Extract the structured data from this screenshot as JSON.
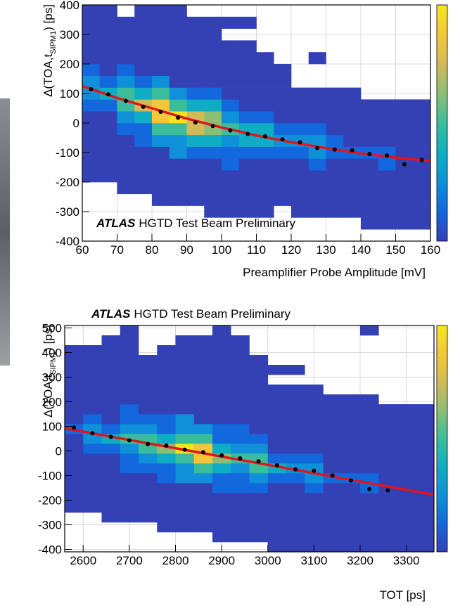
{
  "chart_data": [
    {
      "type": "heatmap",
      "xlabel": "Preamplifier Probe Amplitude [mV]",
      "ylabel": {
        "text": "Δ(TOA,t",
        "sub": "SIPM1",
        "tail": ") [ps]"
      },
      "annotation": {
        "bold": "ATLAS",
        "text": "HGTD Test Beam Preliminary"
      },
      "xlim": [
        60,
        160
      ],
      "ylim": [
        -400,
        400
      ],
      "xticks": [
        60,
        70,
        80,
        90,
        100,
        110,
        120,
        130,
        140,
        150,
        160
      ],
      "yticks": [
        -400,
        -300,
        -200,
        -100,
        0,
        100,
        200,
        300,
        400
      ],
      "grid": true,
      "colormap": [
        "#3441b5",
        "#1268dc",
        "#1090d8",
        "#0fadc4",
        "#3bbd9c",
        "#8dbf73",
        "#d3ba57",
        "#f5c63a",
        "#f6e51e"
      ],
      "xbins": [
        60,
        65,
        70,
        75,
        80,
        85,
        90,
        95,
        100,
        105,
        110,
        115,
        120,
        125,
        130,
        135,
        140,
        145,
        150,
        155,
        160
      ],
      "ybins": [
        -400,
        -360,
        -320,
        -280,
        -240,
        -200,
        -160,
        -120,
        -80,
        -40,
        0,
        40,
        80,
        120,
        160,
        200,
        240,
        280,
        320,
        360,
        400
      ],
      "counts": [
        [
          0,
          0,
          0,
          0,
          0,
          0,
          0,
          0,
          0,
          0,
          0,
          0,
          0,
          0,
          0,
          0,
          0,
          0,
          0,
          0
        ],
        [
          0,
          0,
          0,
          0,
          0,
          0,
          0,
          0,
          0,
          0,
          0,
          0,
          0,
          0,
          0,
          0,
          1,
          1,
          1,
          1
        ],
        [
          0,
          0,
          0,
          0,
          0,
          0,
          0,
          1,
          1,
          1,
          1,
          0,
          1,
          1,
          1,
          1,
          1,
          1,
          1,
          1
        ],
        [
          0,
          0,
          0,
          0,
          1,
          1,
          1,
          1,
          1,
          1,
          1,
          1,
          1,
          1,
          1,
          1,
          1,
          1,
          1,
          1
        ],
        [
          0,
          0,
          1,
          1,
          1,
          1,
          1,
          1,
          1,
          1,
          1,
          1,
          1,
          1,
          1,
          1,
          1,
          1,
          1,
          1
        ],
        [
          1,
          1,
          1,
          1,
          1,
          1,
          1,
          1,
          1,
          1,
          1,
          1,
          1,
          1,
          1,
          1,
          1,
          1,
          1,
          1
        ],
        [
          1,
          1,
          1,
          1,
          1,
          1,
          1,
          1,
          2,
          1,
          1,
          1,
          1,
          2,
          1,
          1,
          1,
          2,
          1,
          1
        ],
        [
          1,
          1,
          1,
          1,
          1,
          3,
          2,
          2,
          2,
          2,
          2,
          2,
          2,
          3,
          2,
          2,
          2,
          2,
          1,
          1
        ],
        [
          1,
          1,
          1,
          2,
          3,
          3,
          4,
          4,
          3,
          4,
          4,
          3,
          3,
          3,
          2,
          1,
          1,
          1,
          1,
          1
        ],
        [
          1,
          1,
          2,
          2,
          5,
          5,
          7,
          6,
          5,
          4,
          4,
          2,
          2,
          2,
          1,
          1,
          1,
          1,
          1,
          1
        ],
        [
          1,
          1,
          3,
          4,
          8,
          9,
          7,
          6,
          3,
          2,
          2,
          1,
          1,
          1,
          1,
          1,
          1,
          1,
          1,
          1
        ],
        [
          2,
          2,
          5,
          7,
          8,
          5,
          4,
          4,
          2,
          1,
          1,
          1,
          1,
          1,
          1,
          1,
          1,
          1,
          1,
          1
        ],
        [
          3,
          4,
          5,
          4,
          5,
          3,
          2,
          2,
          1,
          1,
          1,
          1,
          1,
          1,
          1,
          1,
          0,
          0,
          0,
          0
        ],
        [
          3,
          2,
          3,
          2,
          3,
          1,
          1,
          1,
          1,
          1,
          1,
          1,
          0,
          0,
          0,
          0,
          0,
          0,
          0,
          0
        ],
        [
          2,
          1,
          2,
          1,
          1,
          1,
          1,
          1,
          1,
          1,
          1,
          1,
          0,
          0,
          0,
          0,
          0,
          0,
          0,
          0
        ],
        [
          1,
          1,
          1,
          1,
          1,
          1,
          1,
          1,
          1,
          1,
          1,
          0,
          0,
          1,
          0,
          0,
          0,
          0,
          0,
          0
        ],
        [
          1,
          1,
          1,
          1,
          1,
          1,
          1,
          1,
          1,
          1,
          0,
          0,
          0,
          0,
          0,
          0,
          0,
          0,
          0,
          0
        ],
        [
          1,
          1,
          1,
          1,
          1,
          1,
          1,
          1,
          0,
          0,
          0,
          0,
          0,
          0,
          0,
          0,
          0,
          0,
          0,
          0
        ],
        [
          1,
          1,
          1,
          1,
          1,
          1,
          1,
          1,
          1,
          1,
          0,
          0,
          0,
          0,
          0,
          0,
          0,
          0,
          0,
          0
        ],
        [
          1,
          1,
          0,
          1,
          1,
          1,
          0,
          0,
          0,
          0,
          0,
          0,
          0,
          0,
          0,
          0,
          0,
          0,
          0,
          0
        ]
      ],
      "points": {
        "color": "#000000",
        "x": [
          62.5,
          67.5,
          72.5,
          77.5,
          82.5,
          87.5,
          92.5,
          97.5,
          102.5,
          107.5,
          112.5,
          117.5,
          122.5,
          127.5,
          132.5,
          137.5,
          142.5,
          147.5,
          152.5,
          157.5
        ],
        "y": [
          115,
          97,
          75,
          55,
          38,
          18,
          2,
          -10,
          -25,
          -37,
          -45,
          -55,
          -65,
          -85,
          -90,
          -92,
          -105,
          -110,
          -140,
          -125
        ]
      },
      "fit": {
        "color": "#e3141b",
        "x": [
          60,
          70,
          80,
          90,
          100,
          110,
          120,
          130,
          140,
          150,
          160
        ],
        "y": [
          125,
          85,
          50,
          15,
          -15,
          -42,
          -65,
          -85,
          -103,
          -117,
          -128
        ]
      }
    },
    {
      "type": "heatmap",
      "xlabel": "TOT [ps]",
      "ylabel": {
        "text": "Δ(TOA,t",
        "sub": "SIPM1",
        "tail": ") [ps]"
      },
      "annotation": {
        "bold": "ATLAS",
        "text": "HGTD Test Beam Preliminary"
      },
      "xlim": [
        2560,
        3360
      ],
      "ylim": [
        -410,
        510
      ],
      "xticks": [
        2600,
        2700,
        2800,
        2900,
        3000,
        3100,
        3200,
        3300
      ],
      "yticks": [
        -400,
        -300,
        -200,
        -100,
        0,
        100,
        200,
        300,
        400,
        500
      ],
      "grid": true,
      "colormap": [
        "#3441b5",
        "#1268dc",
        "#1090d8",
        "#0fadc4",
        "#3bbd9c",
        "#8dbf73",
        "#d3ba57",
        "#f5c63a",
        "#f6e51e"
      ],
      "xbins": [
        2560,
        2600,
        2640,
        2680,
        2720,
        2760,
        2800,
        2840,
        2880,
        2920,
        2960,
        3000,
        3040,
        3080,
        3120,
        3160,
        3200,
        3240,
        3280,
        3320,
        3360
      ],
      "ybins": [
        -410,
        -370,
        -330,
        -290,
        -250,
        -210,
        -170,
        -130,
        -90,
        -50,
        -10,
        30,
        70,
        110,
        150,
        190,
        230,
        270,
        310,
        350,
        390,
        430,
        470,
        510
      ],
      "counts": [
        [
          0,
          0,
          0,
          0,
          0,
          0,
          0,
          0,
          0,
          0,
          0,
          1,
          1,
          1,
          1,
          1,
          1,
          1,
          1,
          1
        ],
        [
          0,
          0,
          0,
          0,
          0,
          0,
          0,
          0,
          1,
          1,
          1,
          1,
          1,
          1,
          1,
          1,
          1,
          1,
          1,
          1
        ],
        [
          0,
          0,
          0,
          0,
          0,
          1,
          1,
          1,
          1,
          1,
          1,
          1,
          1,
          1,
          1,
          1,
          1,
          1,
          1,
          1
        ],
        [
          0,
          0,
          1,
          1,
          1,
          1,
          1,
          1,
          1,
          1,
          1,
          1,
          1,
          1,
          1,
          1,
          1,
          1,
          1,
          1
        ],
        [
          1,
          1,
          1,
          1,
          1,
          1,
          1,
          1,
          1,
          1,
          1,
          1,
          1,
          1,
          1,
          1,
          1,
          1,
          1,
          1
        ],
        [
          1,
          1,
          1,
          1,
          1,
          1,
          1,
          1,
          1,
          1,
          1,
          1,
          1,
          1,
          1,
          1,
          1,
          1,
          1,
          1
        ],
        [
          1,
          1,
          1,
          1,
          1,
          1,
          1,
          1,
          2,
          2,
          2,
          1,
          1,
          2,
          1,
          1,
          2,
          1,
          1,
          1
        ],
        [
          1,
          1,
          1,
          1,
          1,
          2,
          3,
          3,
          2,
          2,
          3,
          2,
          2,
          3,
          2,
          2,
          2,
          1,
          1,
          1
        ],
        [
          1,
          1,
          1,
          2,
          2,
          2,
          3,
          5,
          4,
          3,
          5,
          4,
          3,
          3,
          1,
          1,
          1,
          1,
          1,
          1
        ],
        [
          1,
          1,
          1,
          2,
          3,
          4,
          5,
          8,
          6,
          5,
          5,
          2,
          2,
          2,
          1,
          1,
          1,
          1,
          1,
          1
        ],
        [
          1,
          2,
          2,
          3,
          5,
          6,
          9,
          8,
          4,
          3,
          3,
          1,
          1,
          1,
          1,
          1,
          1,
          1,
          1,
          1
        ],
        [
          1,
          3,
          4,
          5,
          5,
          4,
          5,
          5,
          2,
          2,
          2,
          1,
          1,
          1,
          1,
          1,
          1,
          1,
          1,
          1
        ],
        [
          2,
          3,
          2,
          3,
          3,
          2,
          3,
          3,
          2,
          2,
          1,
          1,
          1,
          1,
          1,
          1,
          1,
          1,
          1,
          1
        ],
        [
          1,
          2,
          1,
          2,
          2,
          2,
          3,
          1,
          1,
          1,
          1,
          1,
          1,
          1,
          1,
          1,
          1,
          1,
          1,
          1
        ],
        [
          1,
          1,
          1,
          2,
          1,
          1,
          1,
          1,
          1,
          1,
          1,
          1,
          1,
          1,
          1,
          1,
          1,
          1,
          1,
          1
        ],
        [
          1,
          1,
          1,
          1,
          1,
          1,
          1,
          1,
          1,
          1,
          1,
          1,
          1,
          1,
          1,
          1,
          1,
          0,
          0,
          0
        ],
        [
          1,
          1,
          1,
          1,
          1,
          1,
          1,
          1,
          1,
          1,
          1,
          1,
          1,
          1,
          0,
          0,
          0,
          0,
          0,
          0
        ],
        [
          1,
          1,
          1,
          1,
          1,
          1,
          1,
          1,
          1,
          1,
          1,
          0,
          0,
          0,
          0,
          0,
          0,
          0,
          0,
          0
        ],
        [
          1,
          1,
          1,
          1,
          1,
          1,
          1,
          1,
          1,
          1,
          1,
          1,
          1,
          0,
          0,
          0,
          0,
          0,
          0,
          0
        ],
        [
          1,
          1,
          1,
          1,
          1,
          1,
          1,
          1,
          1,
          1,
          1,
          0,
          0,
          0,
          0,
          0,
          0,
          0,
          0,
          0
        ],
        [
          1,
          1,
          1,
          1,
          0,
          1,
          1,
          1,
          1,
          1,
          0,
          0,
          0,
          0,
          0,
          0,
          0,
          0,
          0,
          0
        ],
        [
          0,
          0,
          1,
          1,
          0,
          0,
          1,
          1,
          1,
          1,
          0,
          0,
          0,
          0,
          0,
          0,
          0,
          0,
          0,
          0
        ],
        [
          0,
          0,
          0,
          1,
          0,
          0,
          0,
          0,
          1,
          0,
          0,
          0,
          0,
          0,
          0,
          0,
          1,
          0,
          0,
          0
        ]
      ],
      "points": {
        "color": "#000000",
        "x": [
          2580,
          2620,
          2660,
          2700,
          2740,
          2780,
          2820,
          2860,
          2900,
          2940,
          2980,
          3020,
          3060,
          3100,
          3140,
          3180,
          3220,
          3260
        ],
        "y": [
          95,
          72,
          58,
          43,
          28,
          22,
          5,
          -5,
          -18,
          -30,
          -42,
          -58,
          -75,
          -80,
          -100,
          -120,
          -155,
          -160
        ]
      },
      "fit": {
        "color": "#e3141b",
        "x": [
          2560,
          3360
        ],
        "y": [
          92,
          -178
        ]
      }
    }
  ]
}
